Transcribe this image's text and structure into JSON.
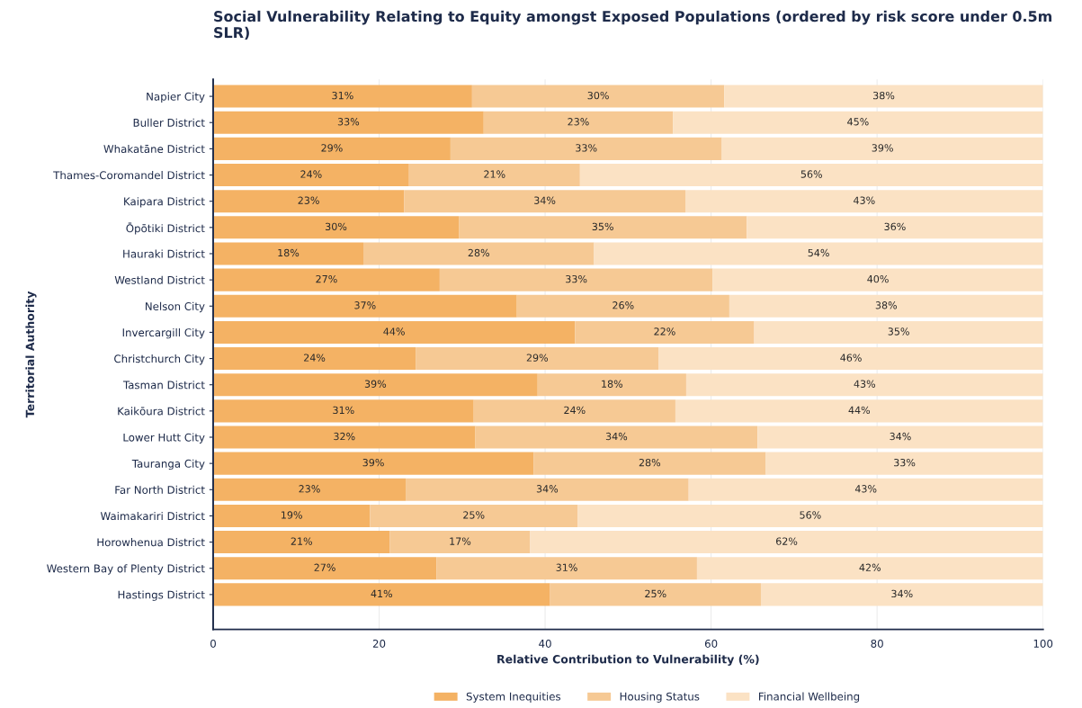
{
  "chart_data": {
    "type": "bar",
    "orientation": "horizontal",
    "stacked": true,
    "title": "Social Vulnerability Relating to Equity amongst Exposed Populations (ordered by risk score under 0.5m SLR)",
    "xlabel": "Relative Contribution to Vulnerability (%)",
    "ylabel": "Territorial Authority",
    "categories": [
      "Napier City",
      "Buller District",
      "Whakatāne District",
      "Thames-Coromandel District",
      "Kaipara District",
      "Ōpōtiki District",
      "Hauraki District",
      "Westland District",
      "Nelson City",
      "Invercargill City",
      "Christchurch City",
      "Tasman District",
      "Kaikōura District",
      "Lower Hutt City",
      "Tauranga City",
      "Far North District",
      "Waimakariri District",
      "Horowhenua District",
      "Western Bay of Plenty District",
      "Hastings District"
    ],
    "series": [
      {
        "name": "System Inequities",
        "color": "#f4b264",
        "values": [
          31.2,
          32.6,
          28.6,
          23.6,
          23.0,
          29.6,
          18.1,
          27.3,
          36.6,
          43.6,
          24.4,
          39.1,
          31.4,
          31.6,
          38.6,
          23.2,
          18.9,
          21.3,
          26.9,
          40.6
        ],
        "value_labels": [
          "31%",
          "33%",
          "29%",
          "24%",
          "23%",
          "30%",
          "18%",
          "27%",
          "37%",
          "44%",
          "24%",
          "39%",
          "31%",
          "32%",
          "39%",
          "23%",
          "19%",
          "21%",
          "27%",
          "41%"
        ]
      },
      {
        "name": "Housing Status",
        "color": "#f6c994",
        "values": [
          30.4,
          22.8,
          32.7,
          20.6,
          33.9,
          34.7,
          27.8,
          32.9,
          25.6,
          21.6,
          29.3,
          17.9,
          24.3,
          34.0,
          28.0,
          34.1,
          25.0,
          16.9,
          31.4,
          25.4
        ],
        "value_labels": [
          "30%",
          "23%",
          "33%",
          "21%",
          "34%",
          "35%",
          "28%",
          "33%",
          "26%",
          "22%",
          "29%",
          "18%",
          "24%",
          "34%",
          "28%",
          "34%",
          "25%",
          "17%",
          "31%",
          "25%"
        ]
      },
      {
        "name": "Financial Wellbeing",
        "color": "#fbe2c4",
        "values": [
          38.4,
          44.6,
          38.7,
          55.8,
          43.1,
          35.7,
          54.1,
          39.8,
          37.8,
          34.8,
          46.3,
          43.0,
          44.3,
          34.4,
          33.4,
          42.7,
          56.1,
          61.8,
          41.7,
          34.0
        ],
        "value_labels": [
          "38%",
          "45%",
          "39%",
          "56%",
          "43%",
          "36%",
          "54%",
          "40%",
          "38%",
          "35%",
          "46%",
          "43%",
          "44%",
          "34%",
          "33%",
          "43%",
          "56%",
          "62%",
          "42%",
          "34%"
        ]
      }
    ],
    "xlim": [
      0,
      100
    ],
    "xticks": [
      0,
      20,
      40,
      60,
      80,
      100
    ],
    "grid": "x",
    "legend": "bottom"
  }
}
